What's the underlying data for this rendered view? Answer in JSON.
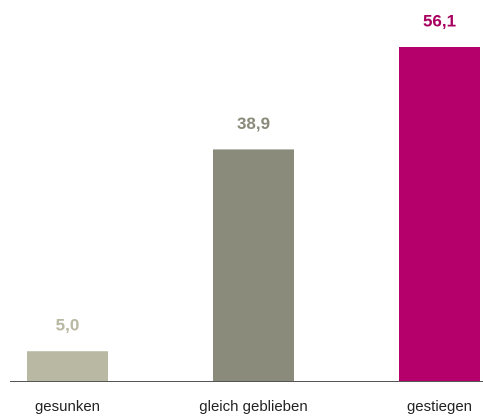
{
  "chart_data": {
    "type": "bar",
    "categories": [
      "gesunken",
      "gleich geblieben",
      "gestiegen"
    ],
    "values": [
      5.0,
      38.9,
      56.1
    ],
    "value_labels": [
      "5,0",
      "38,9",
      "56,1"
    ],
    "colors": [
      "#b9b8a3",
      "#8a8b7b",
      "#b5006b"
    ]
  }
}
